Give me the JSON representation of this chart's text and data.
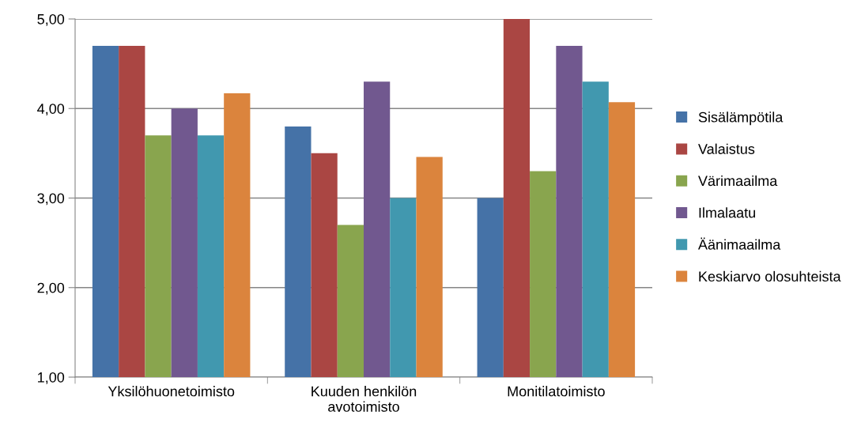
{
  "chart_data": {
    "type": "bar",
    "categories": [
      "Yksilöhuonetoimisto",
      "Kuuden henkilön\navotoimisto",
      "Monitilatoimisto"
    ],
    "series": [
      {
        "name": "Sisälämpötila",
        "color": "#4572a7",
        "values": [
          4.7,
          3.8,
          3.0
        ]
      },
      {
        "name": "Valaistus",
        "color": "#aa4643",
        "values": [
          4.7,
          3.5,
          5.0
        ]
      },
      {
        "name": "Värimaailma",
        "color": "#89a54e",
        "values": [
          3.7,
          2.7,
          3.3
        ]
      },
      {
        "name": "Ilmalaatu",
        "color": "#71588f",
        "values": [
          4.0,
          4.3,
          4.7
        ]
      },
      {
        "name": "Äänimaailma",
        "color": "#4198af",
        "values": [
          3.7,
          3.0,
          4.3
        ]
      },
      {
        "name": "Keskiarvo olosuhteista",
        "color": "#db843d",
        "values": [
          4.17,
          3.46,
          4.07
        ]
      }
    ],
    "ylim": [
      1,
      5
    ],
    "yticks": [
      {
        "value": 1,
        "label": "1,00"
      },
      {
        "value": 2,
        "label": "2,00"
      },
      {
        "value": 3,
        "label": "3,00"
      },
      {
        "value": 4,
        "label": "4,00"
      },
      {
        "value": 5,
        "label": "5,00"
      }
    ],
    "grid": "y",
    "legend": "right"
  }
}
